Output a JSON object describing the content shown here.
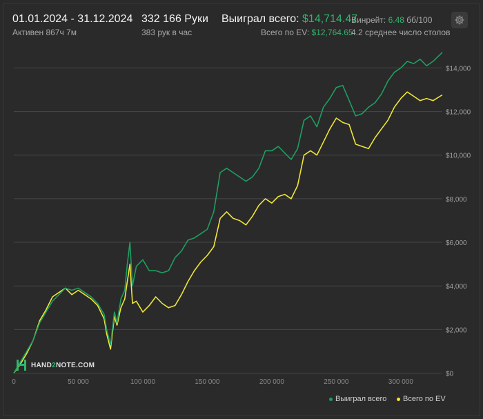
{
  "header": {
    "date_range": "01.01.2024 - 31.12.2024",
    "active": "Активен 867ч 7м",
    "hands": "332 166 Руки",
    "hands_per_hour": "383 рук в час",
    "won_label": "Выиграл всего:",
    "won_value": "$14,714.47",
    "ev_label": "Всего по EV:",
    "ev_value": "$12,764.65",
    "winrate_label": "Винрейт:",
    "winrate_value": "6.48",
    "winrate_unit": "бб/100",
    "tables": "4.2 среднее число столов"
  },
  "logo": {
    "text_before": "HAND",
    "text_accent": "2",
    "text_after": "NOTE.COM"
  },
  "colors": {
    "won": "#1f9e62",
    "ev": "#f0e637",
    "accent": "#2fb56e",
    "grid": "#444444"
  },
  "chart_data": {
    "type": "line",
    "xlim": [
      0,
      332166
    ],
    "ylim": [
      -300,
      14900
    ],
    "x_ticks": [
      "0",
      "50 000",
      "100 000",
      "150 000",
      "200 000",
      "250 000",
      "300 000"
    ],
    "x_tick_values": [
      0,
      50000,
      100000,
      150000,
      200000,
      250000,
      300000
    ],
    "y_ticks": [
      "$0",
      "$2,000",
      "$4,000",
      "$6,000",
      "$8,000",
      "$10,000",
      "$12,000",
      "$14,000"
    ],
    "y_tick_values": [
      0,
      2000,
      4000,
      6000,
      8000,
      10000,
      12000,
      14000
    ],
    "legend_position": "bottom-right",
    "series": [
      {
        "name": "Выиграл всего",
        "color": "#1f9e62",
        "points": [
          [
            0,
            0
          ],
          [
            5000,
            500
          ],
          [
            10000,
            1000
          ],
          [
            15000,
            1500
          ],
          [
            20000,
            2300
          ],
          [
            25000,
            2800
          ],
          [
            30000,
            3300
          ],
          [
            35000,
            3600
          ],
          [
            40000,
            3900
          ],
          [
            45000,
            3800
          ],
          [
            50000,
            3900
          ],
          [
            55000,
            3700
          ],
          [
            60000,
            3500
          ],
          [
            65000,
            3200
          ],
          [
            70000,
            2700
          ],
          [
            72000,
            2000
          ],
          [
            75000,
            1300
          ],
          [
            78000,
            2800
          ],
          [
            80000,
            2300
          ],
          [
            83000,
            3400
          ],
          [
            86000,
            3800
          ],
          [
            88000,
            5000
          ],
          [
            90000,
            6000
          ],
          [
            92000,
            4000
          ],
          [
            95000,
            4900
          ],
          [
            100000,
            5200
          ],
          [
            105000,
            4700
          ],
          [
            110000,
            4700
          ],
          [
            115000,
            4600
          ],
          [
            120000,
            4700
          ],
          [
            125000,
            5300
          ],
          [
            130000,
            5600
          ],
          [
            135000,
            6100
          ],
          [
            140000,
            6200
          ],
          [
            145000,
            6400
          ],
          [
            150000,
            6600
          ],
          [
            155000,
            7400
          ],
          [
            160000,
            9200
          ],
          [
            165000,
            9400
          ],
          [
            170000,
            9200
          ],
          [
            175000,
            9000
          ],
          [
            180000,
            8800
          ],
          [
            185000,
            9000
          ],
          [
            190000,
            9400
          ],
          [
            195000,
            10200
          ],
          [
            200000,
            10200
          ],
          [
            205000,
            10400
          ],
          [
            210000,
            10100
          ],
          [
            215000,
            9800
          ],
          [
            220000,
            10300
          ],
          [
            225000,
            11600
          ],
          [
            230000,
            11800
          ],
          [
            235000,
            11300
          ],
          [
            240000,
            12200
          ],
          [
            245000,
            12600
          ],
          [
            250000,
            13100
          ],
          [
            255000,
            13200
          ],
          [
            260000,
            12500
          ],
          [
            265000,
            11800
          ],
          [
            270000,
            11900
          ],
          [
            275000,
            12200
          ],
          [
            280000,
            12400
          ],
          [
            285000,
            12800
          ],
          [
            290000,
            13400
          ],
          [
            295000,
            13800
          ],
          [
            300000,
            14000
          ],
          [
            305000,
            14300
          ],
          [
            310000,
            14200
          ],
          [
            315000,
            14400
          ],
          [
            320000,
            14100
          ],
          [
            325000,
            14300
          ],
          [
            332166,
            14714
          ]
        ]
      },
      {
        "name": "Всего по EV",
        "color": "#f0e637",
        "points": [
          [
            0,
            0
          ],
          [
            5000,
            400
          ],
          [
            10000,
            900
          ],
          [
            15000,
            1500
          ],
          [
            20000,
            2400
          ],
          [
            25000,
            2900
          ],
          [
            30000,
            3500
          ],
          [
            35000,
            3700
          ],
          [
            40000,
            3900
          ],
          [
            45000,
            3600
          ],
          [
            50000,
            3800
          ],
          [
            55000,
            3600
          ],
          [
            60000,
            3400
          ],
          [
            65000,
            3100
          ],
          [
            70000,
            2500
          ],
          [
            72000,
            1800
          ],
          [
            75000,
            1100
          ],
          [
            78000,
            2600
          ],
          [
            80000,
            2200
          ],
          [
            83000,
            3000
          ],
          [
            86000,
            3400
          ],
          [
            88000,
            4200
          ],
          [
            90000,
            5000
          ],
          [
            92000,
            3200
          ],
          [
            95000,
            3300
          ],
          [
            100000,
            2800
          ],
          [
            105000,
            3100
          ],
          [
            110000,
            3500
          ],
          [
            115000,
            3200
          ],
          [
            120000,
            3000
          ],
          [
            125000,
            3100
          ],
          [
            130000,
            3600
          ],
          [
            135000,
            4200
          ],
          [
            140000,
            4700
          ],
          [
            145000,
            5100
          ],
          [
            150000,
            5400
          ],
          [
            155000,
            5800
          ],
          [
            160000,
            7100
          ],
          [
            165000,
            7400
          ],
          [
            170000,
            7100
          ],
          [
            175000,
            7000
          ],
          [
            180000,
            6800
          ],
          [
            185000,
            7200
          ],
          [
            190000,
            7700
          ],
          [
            195000,
            8000
          ],
          [
            200000,
            7800
          ],
          [
            205000,
            8100
          ],
          [
            210000,
            8200
          ],
          [
            215000,
            8000
          ],
          [
            220000,
            8600
          ],
          [
            225000,
            10000
          ],
          [
            230000,
            10200
          ],
          [
            235000,
            10000
          ],
          [
            240000,
            10600
          ],
          [
            245000,
            11200
          ],
          [
            250000,
            11700
          ],
          [
            255000,
            11500
          ],
          [
            260000,
            11400
          ],
          [
            265000,
            10500
          ],
          [
            270000,
            10400
          ],
          [
            275000,
            10300
          ],
          [
            280000,
            10800
          ],
          [
            285000,
            11200
          ],
          [
            290000,
            11600
          ],
          [
            295000,
            12200
          ],
          [
            300000,
            12600
          ],
          [
            305000,
            12900
          ],
          [
            310000,
            12700
          ],
          [
            315000,
            12500
          ],
          [
            320000,
            12600
          ],
          [
            325000,
            12500
          ],
          [
            332166,
            12764
          ]
        ]
      }
    ]
  }
}
